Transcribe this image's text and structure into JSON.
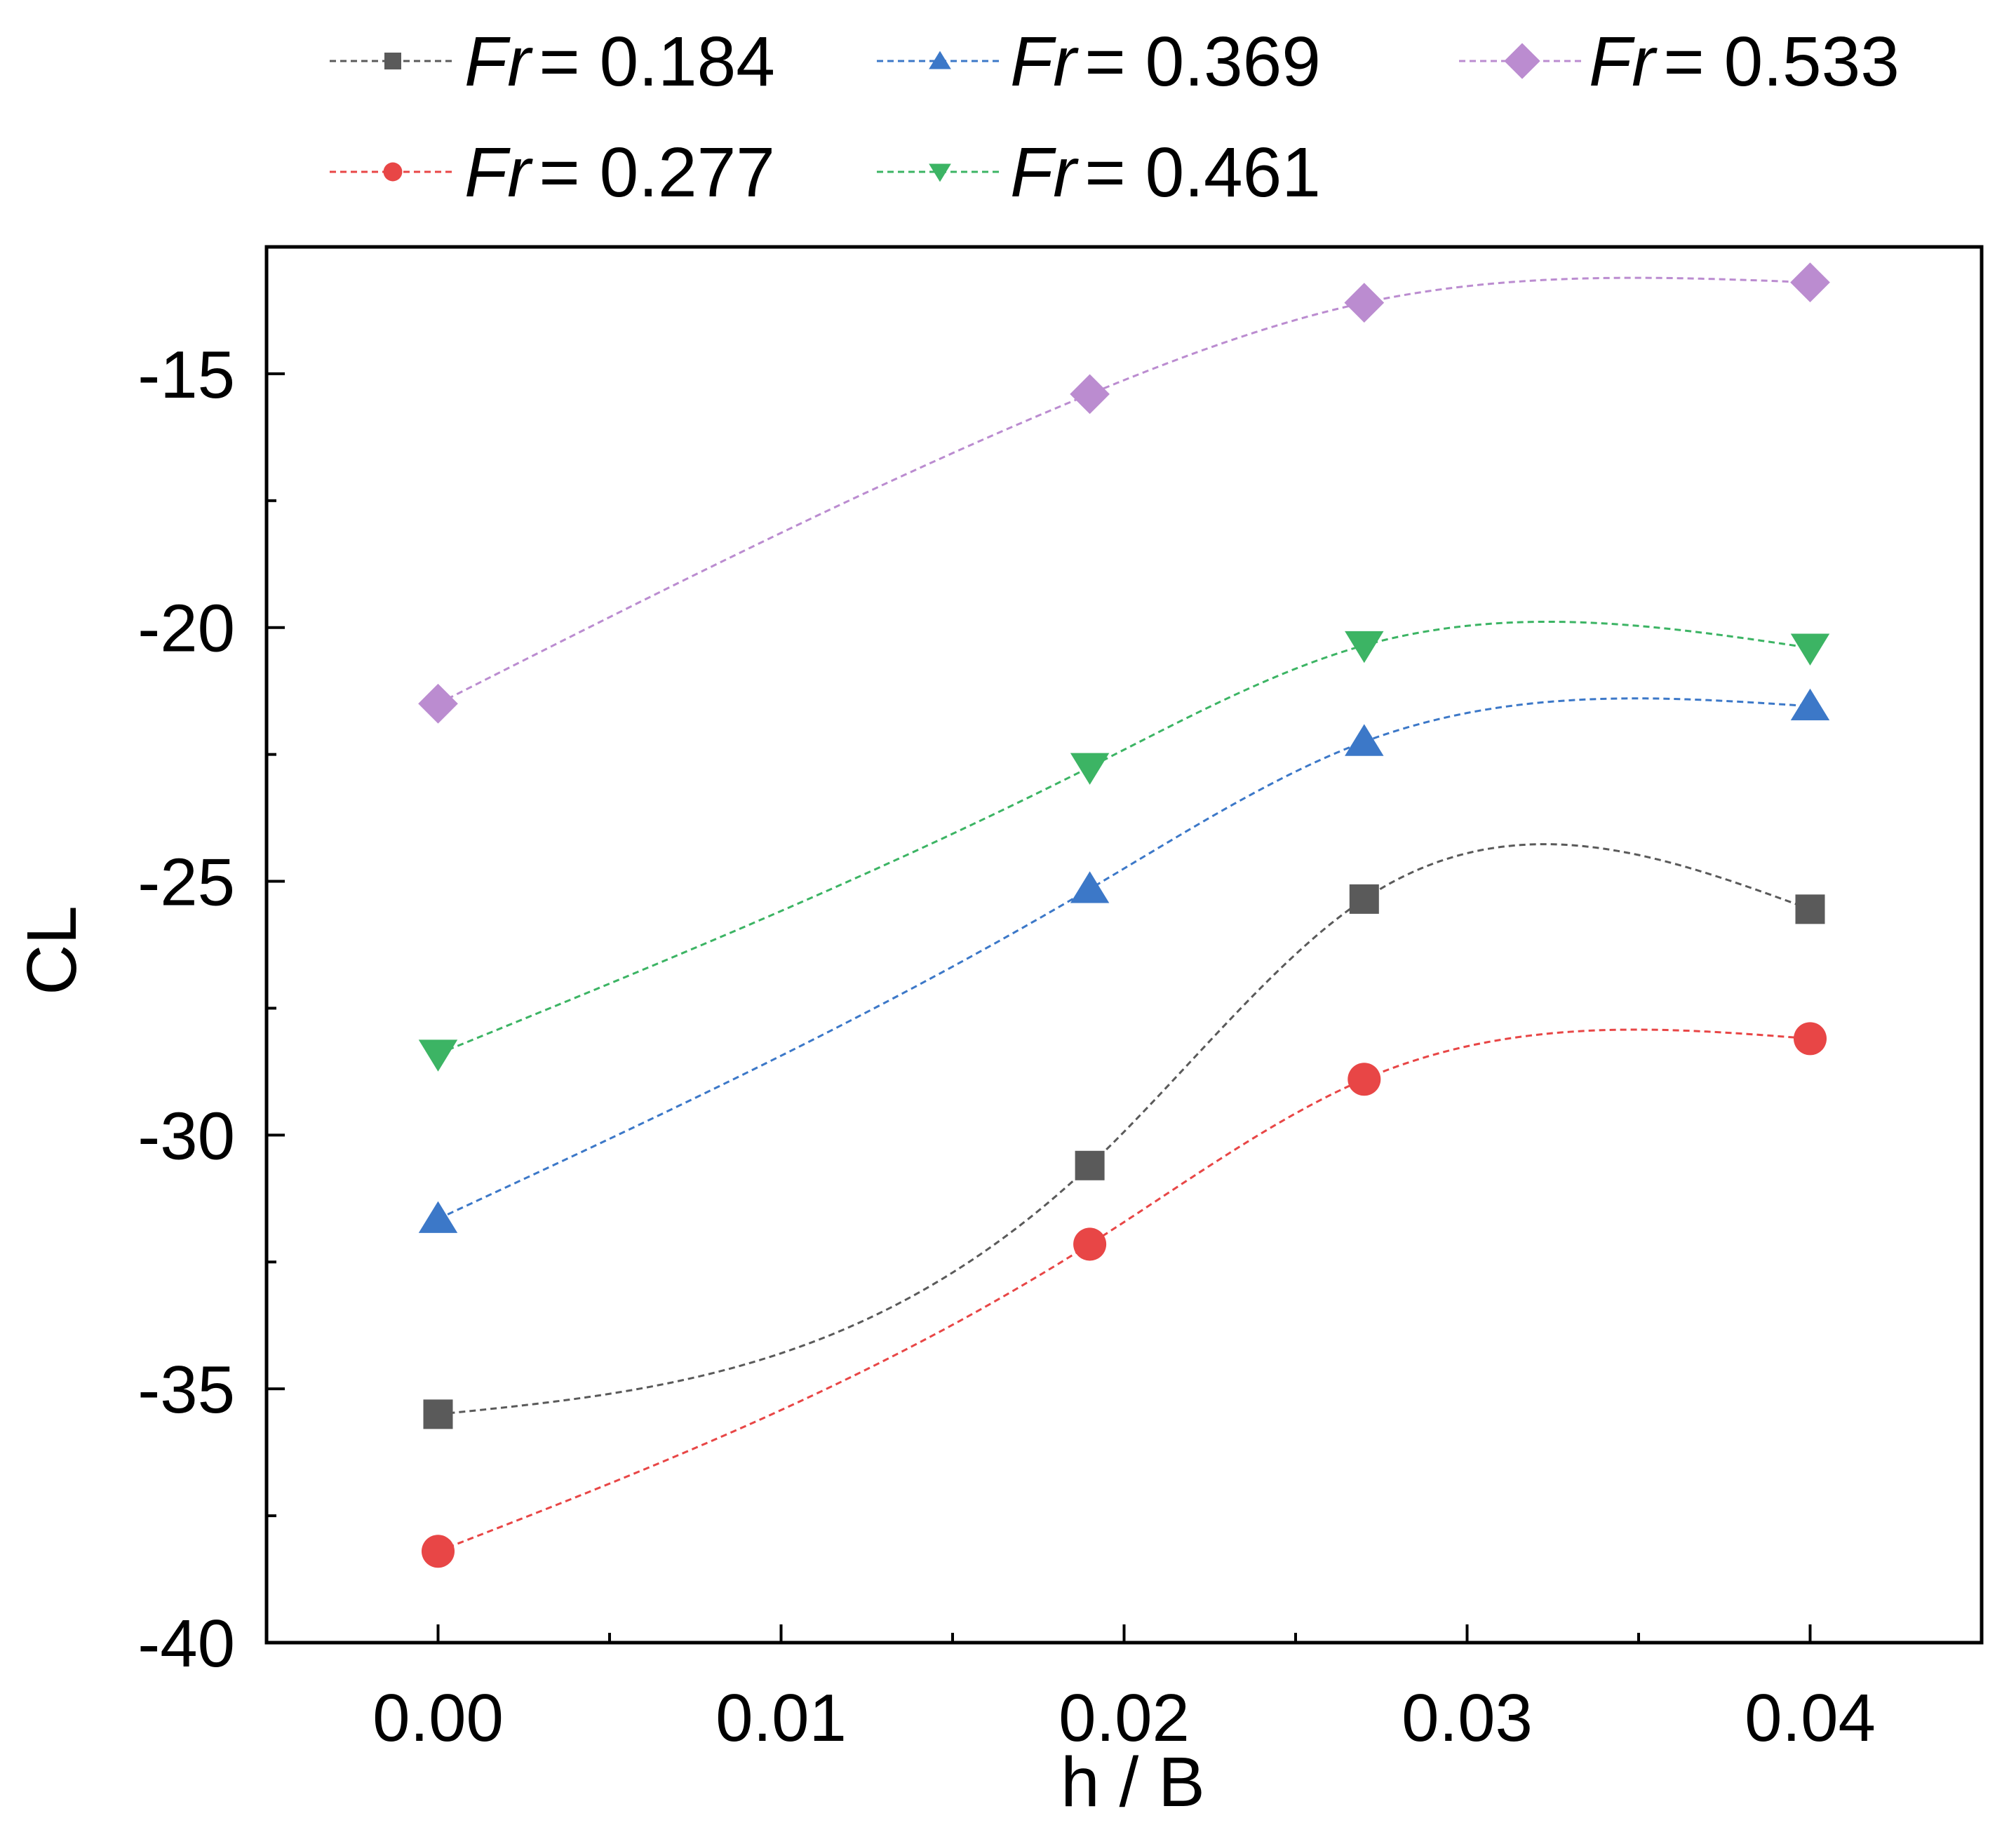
{
  "chart_data": {
    "type": "line",
    "title": "",
    "xlabel": "h / B",
    "ylabel": "CL",
    "xlim": [
      -0.005,
      0.045
    ],
    "ylim": [
      -40,
      -12.5
    ],
    "xticks": [
      0.0,
      0.01,
      0.02,
      0.03,
      0.04
    ],
    "xtick_labels": [
      "0.00",
      "0.01",
      "0.02",
      "0.03",
      "0.04"
    ],
    "yticks": [
      -40,
      -35,
      -30,
      -25,
      -20,
      -15
    ],
    "ytick_labels": [
      "-40",
      "-35",
      "-30",
      "-25",
      "-20",
      "-15"
    ],
    "grid": false,
    "legend_position": "top",
    "x": [
      0.0,
      0.019,
      0.027,
      0.04
    ],
    "series": [
      {
        "name": "Fr = 0.184",
        "prefix": "Fr",
        "value_text": "= 0.184",
        "color": "#5a5a5a",
        "marker": "square",
        "values": [
          -35.5,
          -30.6,
          -25.35,
          -25.55
        ]
      },
      {
        "name": "Fr = 0.277",
        "prefix": "Fr",
        "value_text": "= 0.277",
        "color": "#e84646",
        "marker": "circle",
        "values": [
          -38.2,
          -32.15,
          -28.9,
          -28.1
        ]
      },
      {
        "name": "Fr = 0.369",
        "prefix": "Fr",
        "value_text": "= 0.369",
        "color": "#3c78c8",
        "marker": "triangle-up",
        "values": [
          -31.65,
          -25.15,
          -22.25,
          -21.55
        ]
      },
      {
        "name": "Fr = 0.461",
        "prefix": "Fr",
        "value_text": "= 0.461",
        "color": "#3cb464",
        "marker": "triangle-down",
        "values": [
          -28.4,
          -22.75,
          -20.35,
          -20.4
        ]
      },
      {
        "name": "Fr = 0.533",
        "prefix": "Fr",
        "value_text": "= 0.533",
        "color": "#bb8cd0",
        "marker": "diamond",
        "values": [
          -21.5,
          -15.4,
          -13.6,
          -13.2
        ]
      }
    ]
  }
}
